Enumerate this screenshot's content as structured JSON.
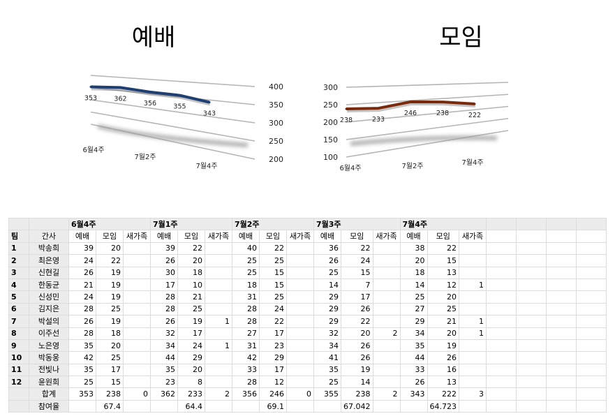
{
  "charts": [
    {
      "id": "worship",
      "title": "예배",
      "type": "line",
      "categories": [
        "6월4주",
        "7월1주",
        "7월2주",
        "7월3주",
        "7월4주"
      ],
      "x_tick_labels": [
        "6월4주",
        "",
        "7월2주",
        "",
        "7월4주"
      ],
      "values": [
        353,
        362,
        356,
        355,
        343
      ],
      "ylim": [
        200,
        400
      ],
      "yticks": [
        200,
        250,
        300,
        350,
        400
      ],
      "axis_position": "right",
      "line_color": "#1f3f73",
      "grid": true
    },
    {
      "id": "meeting",
      "title": "모임",
      "type": "line",
      "categories": [
        "6월4주",
        "7월1주",
        "7월2주",
        "7월3주",
        "7월4주"
      ],
      "x_tick_labels": [
        "6월4주",
        "",
        "7월2주",
        "",
        "7월4주"
      ],
      "values": [
        238,
        233,
        246,
        238,
        222
      ],
      "ylim": [
        100,
        300
      ],
      "yticks": [
        100,
        150,
        200,
        250,
        300
      ],
      "axis_position": "left",
      "line_color": "#7a2a0c",
      "grid": true
    }
  ],
  "table": {
    "weeks": [
      "6월4주",
      "7월1주",
      "7월2주",
      "7월3주",
      "7월4주"
    ],
    "header": {
      "team": "팀",
      "name": "간사",
      "worship": "예배",
      "meeting": "모임",
      "new_family": "새가족"
    },
    "rows": [
      {
        "team": "1",
        "name": "박송희",
        "weeks": [
          [
            39,
            20,
            ""
          ],
          [
            39,
            22,
            ""
          ],
          [
            40,
            22,
            ""
          ],
          [
            36,
            22,
            ""
          ],
          [
            38,
            22,
            ""
          ]
        ]
      },
      {
        "team": "2",
        "name": "최은영",
        "weeks": [
          [
            24,
            22,
            ""
          ],
          [
            26,
            20,
            ""
          ],
          [
            25,
            25,
            ""
          ],
          [
            26,
            24,
            ""
          ],
          [
            20,
            15,
            ""
          ]
        ]
      },
      {
        "team": "3",
        "name": "신현길",
        "weeks": [
          [
            26,
            19,
            ""
          ],
          [
            30,
            18,
            ""
          ],
          [
            25,
            15,
            ""
          ],
          [
            25,
            15,
            ""
          ],
          [
            18,
            13,
            ""
          ]
        ]
      },
      {
        "team": "4",
        "name": "한동균",
        "weeks": [
          [
            21,
            19,
            ""
          ],
          [
            17,
            10,
            ""
          ],
          [
            18,
            15,
            ""
          ],
          [
            14,
            7,
            ""
          ],
          [
            14,
            12,
            1
          ]
        ]
      },
      {
        "team": "5",
        "name": "신성민",
        "weeks": [
          [
            24,
            19,
            ""
          ],
          [
            28,
            21,
            ""
          ],
          [
            31,
            25,
            ""
          ],
          [
            29,
            17,
            ""
          ],
          [
            25,
            20,
            ""
          ]
        ]
      },
      {
        "team": "6",
        "name": "김지은",
        "weeks": [
          [
            28,
            25,
            ""
          ],
          [
            28,
            25,
            ""
          ],
          [
            28,
            24,
            ""
          ],
          [
            29,
            26,
            ""
          ],
          [
            27,
            25,
            ""
          ]
        ]
      },
      {
        "team": "7",
        "name": "박설의",
        "weeks": [
          [
            26,
            19,
            ""
          ],
          [
            26,
            19,
            1
          ],
          [
            28,
            22,
            ""
          ],
          [
            29,
            22,
            ""
          ],
          [
            29,
            21,
            1
          ]
        ]
      },
      {
        "team": "8",
        "name": "이주선",
        "weeks": [
          [
            28,
            18,
            ""
          ],
          [
            32,
            17,
            ""
          ],
          [
            27,
            17,
            ""
          ],
          [
            32,
            20,
            2
          ],
          [
            34,
            20,
            1
          ]
        ]
      },
      {
        "team": "9",
        "name": "노은영",
        "weeks": [
          [
            35,
            20,
            ""
          ],
          [
            34,
            24,
            1
          ],
          [
            31,
            23,
            ""
          ],
          [
            34,
            26,
            ""
          ],
          [
            35,
            19,
            ""
          ]
        ]
      },
      {
        "team": "10",
        "name": "박동웅",
        "weeks": [
          [
            42,
            25,
            ""
          ],
          [
            44,
            29,
            ""
          ],
          [
            42,
            29,
            ""
          ],
          [
            41,
            26,
            ""
          ],
          [
            44,
            26,
            ""
          ]
        ]
      },
      {
        "team": "11",
        "name": "전빛나",
        "weeks": [
          [
            35,
            17,
            ""
          ],
          [
            35,
            20,
            ""
          ],
          [
            33,
            17,
            ""
          ],
          [
            35,
            19,
            ""
          ],
          [
            33,
            16,
            ""
          ]
        ]
      },
      {
        "team": "12",
        "name": "윤원희",
        "weeks": [
          [
            25,
            15,
            ""
          ],
          [
            23,
            8,
            ""
          ],
          [
            28,
            12,
            ""
          ],
          [
            25,
            14,
            ""
          ],
          [
            26,
            13,
            ""
          ]
        ]
      }
    ],
    "total": {
      "label": "합계",
      "weeks": [
        [
          353,
          238,
          0
        ],
        [
          362,
          233,
          2
        ],
        [
          356,
          246,
          0
        ],
        [
          355,
          238,
          2
        ],
        [
          343,
          222,
          3
        ]
      ]
    },
    "rate": {
      "label": "참여율",
      "weeks": [
        "67.4",
        "64.4",
        "69.1",
        "67.042",
        "64.723"
      ]
    }
  }
}
